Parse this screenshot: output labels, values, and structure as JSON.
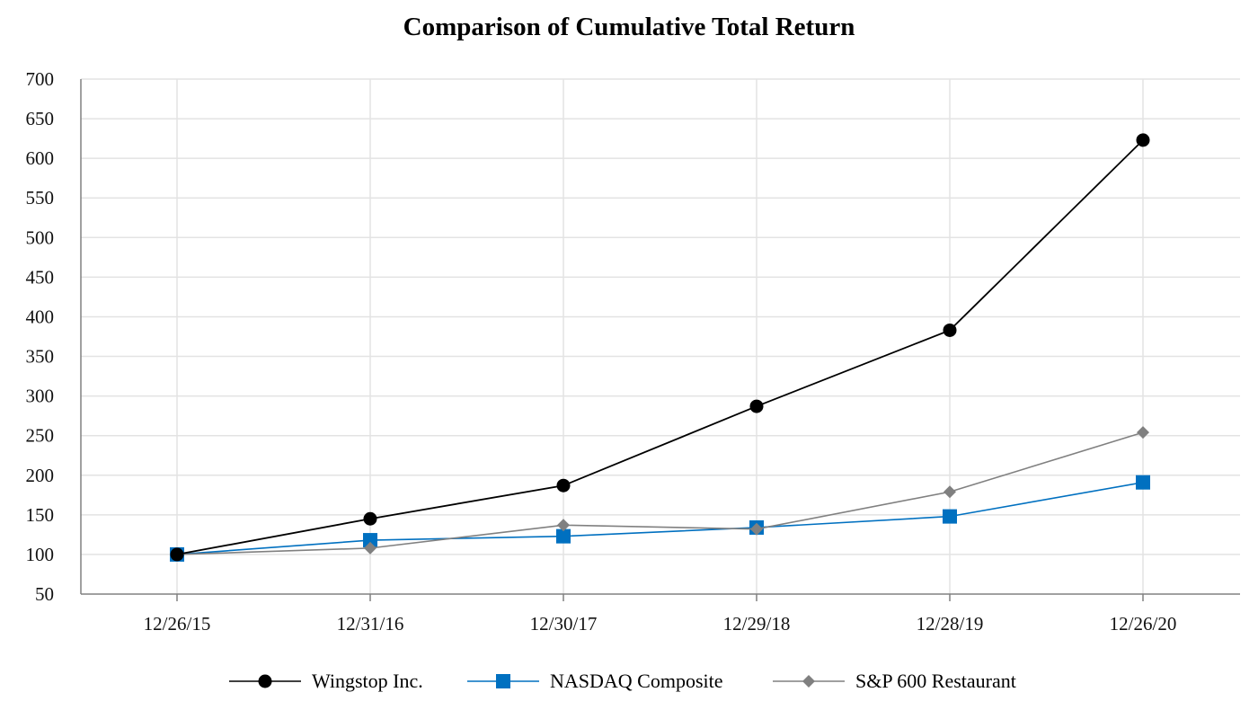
{
  "chart_data": {
    "type": "line",
    "title": "Comparison of Cumulative Total Return",
    "xlabel": "",
    "ylabel": "",
    "categories": [
      "12/26/15",
      "12/31/16",
      "12/30/17",
      "12/29/18",
      "12/28/19",
      "12/26/20"
    ],
    "ylim": [
      50,
      700
    ],
    "yticks": [
      50,
      100,
      150,
      200,
      250,
      300,
      350,
      400,
      450,
      500,
      550,
      600,
      650,
      700
    ],
    "grid": true,
    "legend_position": "bottom",
    "series": [
      {
        "name": "Wingstop Inc.",
        "marker": "circle",
        "color": "#000000",
        "values": [
          100,
          145,
          187,
          287,
          383,
          623
        ]
      },
      {
        "name": "NASDAQ Composite",
        "marker": "square",
        "color": "#0070C0",
        "values": [
          100,
          118,
          123,
          134,
          148,
          191
        ]
      },
      {
        "name": "S&P 600 Restaurant",
        "marker": "diamond",
        "color": "#808080",
        "values": [
          100,
          108,
          137,
          132,
          179,
          254
        ]
      }
    ]
  }
}
